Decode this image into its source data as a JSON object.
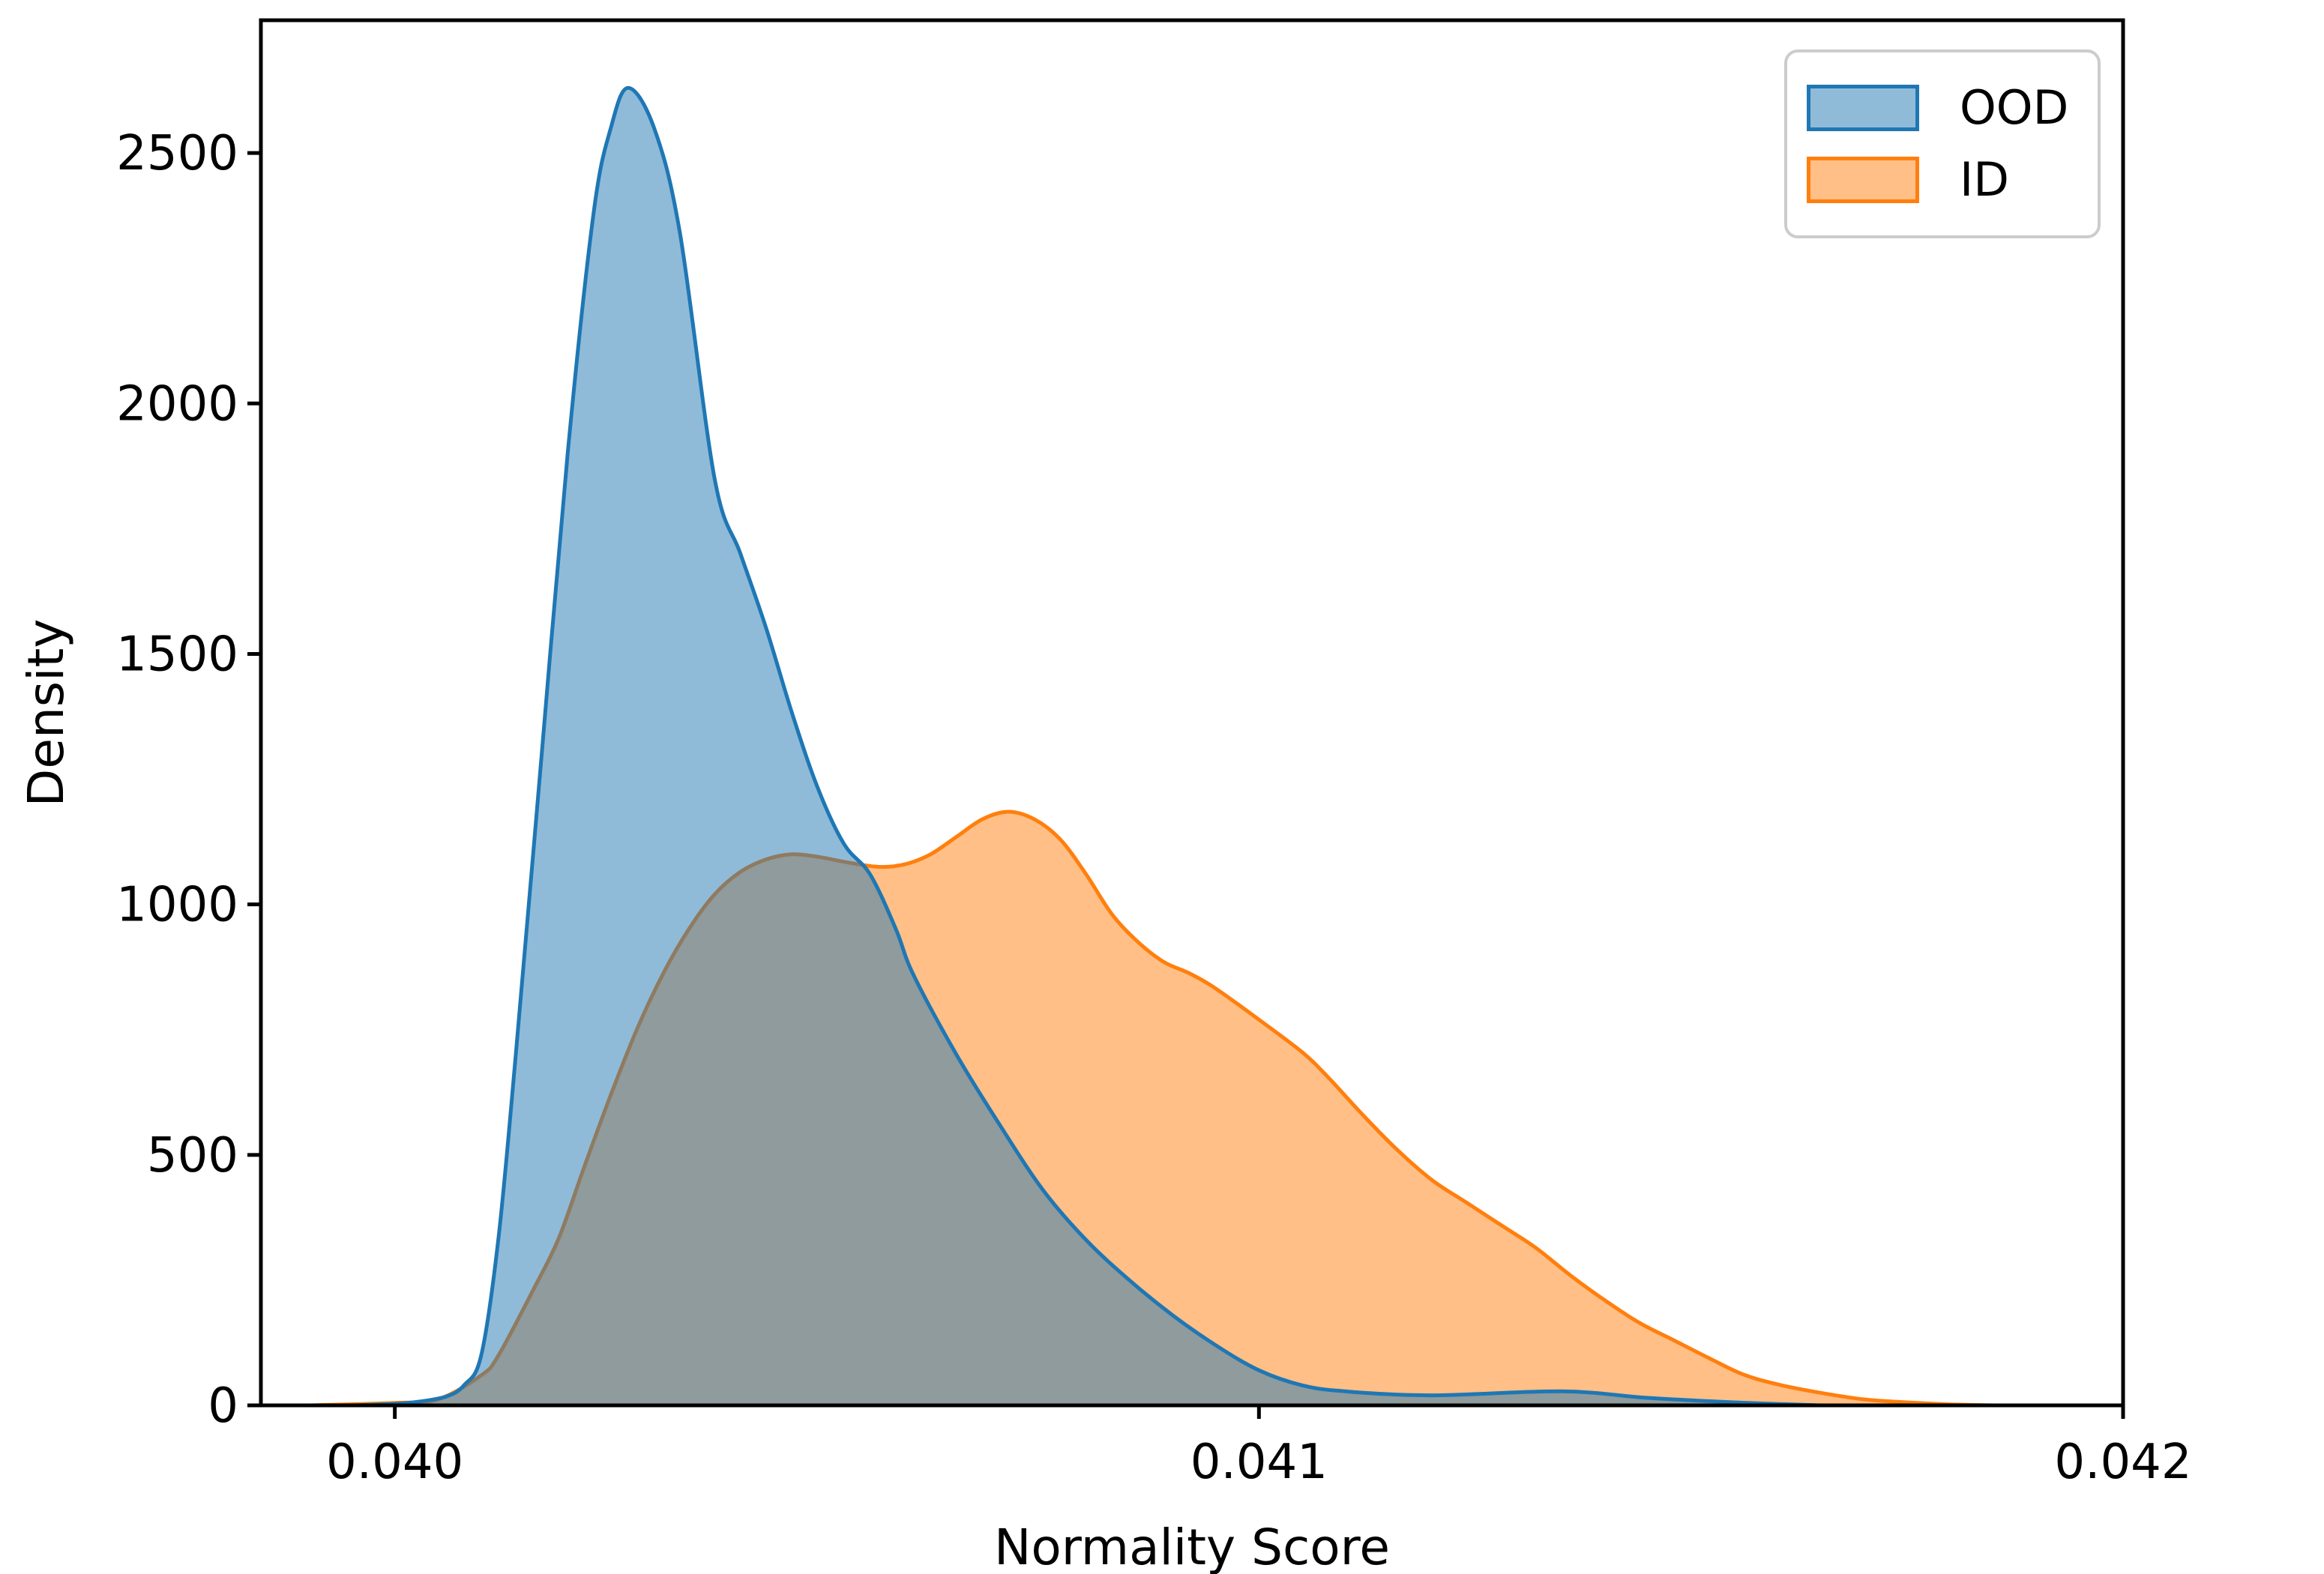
{
  "chart_data": {
    "type": "area",
    "title": "",
    "xlabel": "Normality Score",
    "ylabel": "Density",
    "xlim": [
      0.039845,
      0.042
    ],
    "ylim": [
      0,
      2765
    ],
    "xticks": [
      0.04,
      0.041,
      0.042
    ],
    "xtick_labels": [
      "0.040",
      "0.041",
      "0.042"
    ],
    "yticks": [
      0,
      500,
      1000,
      1500,
      2000,
      2500
    ],
    "ytick_labels": [
      "0",
      "500",
      "1000",
      "1500",
      "2000",
      "2500"
    ],
    "grid": false,
    "legend": {
      "position": "upper right",
      "border_color": "#cccccc",
      "entries": [
        {
          "label": "OOD",
          "line_color": "#1f77b4",
          "fill_color": "#1f77b4",
          "fill_opacity": 0.5
        },
        {
          "label": "ID",
          "line_color": "#ff7f0e",
          "fill_color": "#ff7f0e",
          "fill_opacity": 0.5
        }
      ]
    },
    "axis_color": "#000000",
    "series": [
      {
        "name": "ID",
        "line_color": "#ff7f0e",
        "fill_color": "#ff7f0e",
        "fill_opacity": 0.5,
        "line_width": 5,
        "points": [
          [
            0.0399,
            0
          ],
          [
            0.04,
            5
          ],
          [
            0.04005,
            12
          ],
          [
            0.0401,
            60
          ],
          [
            0.04012,
            100
          ],
          [
            0.04016,
            230
          ],
          [
            0.04019,
            335
          ],
          [
            0.04022,
            480
          ],
          [
            0.04025,
            620
          ],
          [
            0.04028,
            750
          ],
          [
            0.04031,
            860
          ],
          [
            0.04034,
            950
          ],
          [
            0.04037,
            1020
          ],
          [
            0.0404,
            1065
          ],
          [
            0.04043,
            1090
          ],
          [
            0.04046,
            1100
          ],
          [
            0.04049,
            1095
          ],
          [
            0.04052,
            1085
          ],
          [
            0.04056,
            1075
          ],
          [
            0.04059,
            1080
          ],
          [
            0.04062,
            1100
          ],
          [
            0.04065,
            1135
          ],
          [
            0.04068,
            1170
          ],
          [
            0.04071,
            1185
          ],
          [
            0.04074,
            1170
          ],
          [
            0.04077,
            1130
          ],
          [
            0.0408,
            1060
          ],
          [
            0.04083,
            980
          ],
          [
            0.04086,
            925
          ],
          [
            0.04089,
            885
          ],
          [
            0.04092,
            862
          ],
          [
            0.04095,
            832
          ],
          [
            0.041,
            770
          ],
          [
            0.04105,
            705
          ],
          [
            0.04108,
            655
          ],
          [
            0.04112,
            580
          ],
          [
            0.04116,
            510
          ],
          [
            0.0412,
            450
          ],
          [
            0.04124,
            405
          ],
          [
            0.04128,
            360
          ],
          [
            0.04132,
            315
          ],
          [
            0.04136,
            260
          ],
          [
            0.0414,
            210
          ],
          [
            0.04144,
            165
          ],
          [
            0.04148,
            130
          ],
          [
            0.04152,
            95
          ],
          [
            0.04156,
            62
          ],
          [
            0.0416,
            42
          ],
          [
            0.04165,
            25
          ],
          [
            0.0417,
            12
          ],
          [
            0.04175,
            6
          ],
          [
            0.0418,
            2
          ],
          [
            0.04185,
            0
          ]
        ]
      },
      {
        "name": "OOD",
        "line_color": "#1f77b4",
        "fill_color": "#1f77b4",
        "fill_opacity": 0.5,
        "line_width": 5,
        "points": [
          [
            0.03995,
            0
          ],
          [
            0.04,
            3
          ],
          [
            0.04003,
            8
          ],
          [
            0.04006,
            18
          ],
          [
            0.04008,
            40
          ],
          [
            0.0401,
            100
          ],
          [
            0.04012,
            335
          ],
          [
            0.04014,
            700
          ],
          [
            0.04017,
            1300
          ],
          [
            0.0402,
            1900
          ],
          [
            0.04023,
            2380
          ],
          [
            0.04025,
            2550
          ],
          [
            0.04027,
            2630
          ],
          [
            0.0403,
            2550
          ],
          [
            0.04033,
            2340
          ],
          [
            0.04037,
            1850
          ],
          [
            0.0404,
            1700
          ],
          [
            0.04043,
            1550
          ],
          [
            0.04046,
            1380
          ],
          [
            0.04049,
            1230
          ],
          [
            0.04052,
            1120
          ],
          [
            0.04055,
            1060
          ],
          [
            0.04058,
            950
          ],
          [
            0.0406,
            860
          ],
          [
            0.04065,
            700
          ],
          [
            0.0407,
            560
          ],
          [
            0.04075,
            430
          ],
          [
            0.0408,
            330
          ],
          [
            0.04085,
            250
          ],
          [
            0.0409,
            180
          ],
          [
            0.04095,
            120
          ],
          [
            0.041,
            70
          ],
          [
            0.04105,
            40
          ],
          [
            0.0411,
            28
          ],
          [
            0.0412,
            20
          ],
          [
            0.04135,
            28
          ],
          [
            0.04145,
            15
          ],
          [
            0.04155,
            6
          ],
          [
            0.04165,
            0
          ]
        ]
      }
    ]
  }
}
